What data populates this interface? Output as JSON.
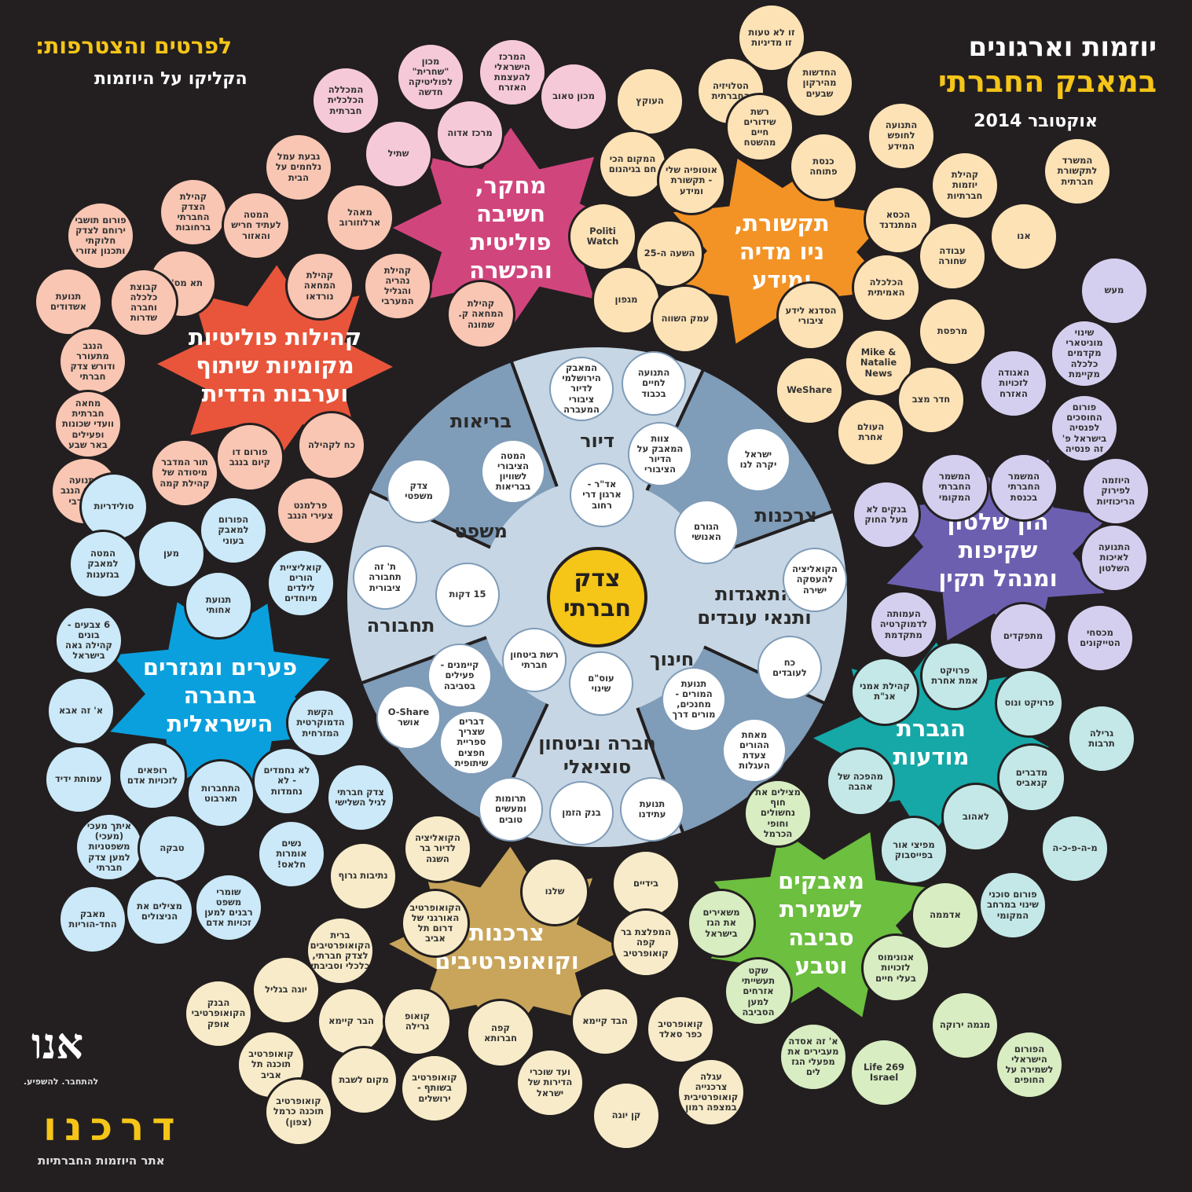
{
  "header": {
    "title_line1": "יוזמות וארגונים",
    "title_line2": "במאבק החברתי",
    "date": "אוקטובר 2014"
  },
  "instructions": {
    "line1": "לפרטים והצטרפות:",
    "line2": "הקליקו על היוזמות"
  },
  "center": {
    "label_line1": "צדק",
    "label_line2": "חברתי"
  },
  "clusters": [
    {
      "label": [
        "מחקר,",
        "חשיבה",
        "פוליטית",
        "והכשרה"
      ],
      "color": "#d1457d",
      "bubble_color": "#f6c9d9",
      "items": [
        "המכללה הכלכלית חברתית",
        "מכון \"שחרית\" לפוליטיקה חדשה",
        "המרכז הישראלי להעצמת האזרח",
        "מכון טאוב",
        "מרכז אדוה",
        "שתיל"
      ]
    },
    {
      "label": [
        "תקשורת,",
        "ניו מדיה",
        "ומידע"
      ],
      "color": "#f39325",
      "bubble_color": "#fde2b6",
      "items": [
        "זו לא טעות זו מדיניות",
        "הטלויזיה החברתית",
        "העוקץ",
        "החדשות מהירקון שבעים",
        "רשת שידורים חיים מהשטח",
        "המקום הכי חם בגיהנום",
        "אוטופיה שלי - תקשורת ומידע",
        "כנסת פתוחה",
        "התנועה לחופש המידע",
        "קהילת יוזמות חברתיות",
        "המשרד לתקשורת חברתית",
        "הכסא המתנדנד",
        "אנו",
        "עבודה שחורה",
        "הכלכלה האמיתית",
        "Politi Watch",
        "השעה ה-25",
        "מגפון",
        "עמק השווה",
        "הסדנא לידע ציבורי",
        "Mike & Natalie News",
        "WeShare",
        "מרפסת",
        "חדר מצב",
        "העולם אחרת"
      ]
    },
    {
      "label": [
        "קהילות פוליטיות",
        "מקומיות שיתוף",
        "וערבות הדדית"
      ],
      "color": "#e8553b",
      "bubble_color": "#f8c6b3",
      "items": [
        "גבעת עמל נלחמים על הבית",
        "מאהל ארלוזורוב",
        "קהילת הצדק החברתי ברחובות",
        "המטה לעתיד חריש והאזור",
        "פורום תושבי ירוחם לצדק חלוקתי ותכנון אזורי",
        "תא מס' 1",
        "קהילת המחאה נורדאו",
        "קהילת נהריה והגליל המערבי",
        "קהילת המחאה ק. שמונה",
        "תנועת אשדודים",
        "קבוצת כלכלה וחברה שדרות",
        "הנגב מתעורר ודורש צדק חברתי",
        "מחאה חברתית וועדי שכונות ופעילים באר שבע",
        "התנועה לעתיד הנגב המערבי",
        "תור המדבר מיסודה של קהילת קמה",
        "פורום דו קיום בנגב",
        "כח לקהילה",
        "פרלמנט צעירי הנגב"
      ]
    },
    {
      "label": [
        "פערים ומגזרים",
        "בחברה",
        "הישראלית"
      ],
      "color": "#0aa0dd",
      "bubble_color": "#cbe9f8",
      "items": [
        "סולידריות",
        "הפורום למאבק בעוני",
        "מען",
        "המטה למאבק בגזענות",
        "קואליציית הורים לילדים מיוחדים",
        "תנועת אחותי",
        "6 צבעים - בונים קהילה גאה בישראל",
        "א' זה אבא",
        "הקשת הדמוקרטית המזרחית",
        "עמותת ידיד",
        "רופאים לזכויות אדם",
        "התחברות תארבוט",
        "לא נחמדים - לא נחמדות",
        "צדק חברתי לגיל השלישי",
        "איתך מעכי (מעכי) משפטניות למען צדק חברתי",
        "טבקה",
        "נשים אומרות חלאס!",
        "שומרי משפט רבנים למען זכויות אדם",
        "מצילים את הניצולים",
        "מאבק החד-הוריות"
      ]
    },
    {
      "label": [
        "צרכנות",
        "וקואופרטיבים"
      ],
      "color": "#c8a55a",
      "bubble_color": "#f7ebc9",
      "items": [
        "הקואליציה לדיור בר השגה",
        "נתיבות גרוף",
        "שלנו",
        "בידיים",
        "הקואופרטיב האורגני של דרום תל אביב",
        "ברית הקואופרטיבים לצדק חברתי, כלכלי וסביבתי",
        "המפלצת בר קפה קואופרטיב",
        "יוגה בגליל",
        "הבנק הקואופרטיבי אופק",
        "הבר קיימא",
        "קואופ גרילה",
        "קפה חברותא",
        "הבד קיימא",
        "קואופרטיב כפר סאלד",
        "קואופרטיב תוכנה תל אביב",
        "מקום לשבת",
        "קואופרטיב בשותף - ירושלים",
        "ועד שוכרי הדירות של ישראל",
        "קן יוגה",
        "קואופרטיב תוכנה כרמל (צפון)",
        "עגלה צרכנייה קואופרטיבית במצפה רמון"
      ]
    },
    {
      "label": [
        "מאבקים",
        "לשמירת",
        "סביבה",
        "וטבע"
      ],
      "color": "#6cbf3f",
      "bubble_color": "#d8edc2",
      "items": [
        "מצילים את חוף נחשולים וחופי הכרמל",
        "משאירים את הגז בישראל",
        "שקט תעשייתי אזרחים למען הסביבה",
        "א' זה אסדה מעבירים את מפעלי הגז לים",
        "Life 269 Israel",
        "אנונימוס לזכויות בעלי חיים",
        "אדממה",
        "מגמה ירוקה",
        "הפורום הישראלי לשמירה על החופים"
      ]
    },
    {
      "label": [
        "הגברת",
        "מודעות"
      ],
      "color": "#15a8a7",
      "bubble_color": "#c4e8e8",
      "items": [
        "קהילת אמני אנ\"ת",
        "פרויקט אמת אחרת",
        "פרויקט ונוס",
        "גרילה תרבות",
        "מדברים קנאביס",
        "מהפכה של אהבה",
        "לאהוב",
        "מפיצי אור בפייסבוק",
        "מ-ה-פ-כ-ה",
        "פורום סוכני שינוי במרחב המקומי"
      ]
    },
    {
      "label": [
        "הון שלטון",
        "שקיפות",
        "ומנהל תקין"
      ],
      "color": "#6d5fb0",
      "bubble_color": "#d5cfef",
      "items": [
        "מעש",
        "שינוי מוניטארי מקדמים כלכלה מקיימת",
        "האגודה לזכויות האזרח",
        "פורום החוסכים לפנסיה בישראל פ' זה פנסיה",
        "המשמר החברתי המקומי",
        "המשמר החברתי בכנסת",
        "היוזמה לפירוק הריכוזיות",
        "בנקים לא מעל החוק",
        "התנועה לאיכות השלטון",
        "העמותה לדמוקרטיה מתקדמת",
        "מתפקדים",
        "מכסחי הטייקונים"
      ]
    }
  ],
  "inner_topics": [
    {
      "label": [
        "בריאות"
      ],
      "items": [
        "המטה הציבורי לשוויון בבריאות"
      ]
    },
    {
      "label": [
        "דיור"
      ],
      "items": [
        "המאבק הירושלמי לדיור ציבורי המעברה",
        "התנועה לחיים בכבוד",
        "צוות המאבק על הדיור הציבורי",
        "אד\"ר - ארגון דרי רחוב"
      ]
    },
    {
      "label": [
        "צרכנות"
      ],
      "items": [
        "ישראל יקרה לנו",
        "הגורם האנושי"
      ]
    },
    {
      "label": [
        "התאגדות",
        "ותנאי עובדים"
      ],
      "items": [
        "הקואליציה להעסקה ישירה",
        "כח לעובדים"
      ]
    },
    {
      "label": [
        "חינוך"
      ],
      "items": [
        "תנועת המורים - מחנכים, מורים דרך",
        "מאחת ההורים צעדת העגלות"
      ]
    },
    {
      "label": [
        "חברה וביטחון",
        "סוציאלי"
      ],
      "items": [
        "רשת ביטחון חברתי",
        "עוס\"ם שינוי",
        "קיימנים - פעילים בסביבה",
        "O-Share אושר",
        "דברים שצריך ספריית חפצים שיתופית",
        "תרומות ומעשים טובים",
        "בנק הזמן",
        "תנועת עתידנו"
      ]
    },
    {
      "label": [
        "תחבורה"
      ],
      "items": [
        "ת' זה תחבורה ציבורית",
        "15 דקות"
      ]
    },
    {
      "label": [
        "משפט"
      ],
      "items": [
        "צדק משפטי"
      ]
    }
  ],
  "logos": {
    "anu": "אנו",
    "anu_tagline": "להתחבר. להשפיע.",
    "site": "דרכנו",
    "site_tagline": "אתר היוזמות החברתיות"
  }
}
